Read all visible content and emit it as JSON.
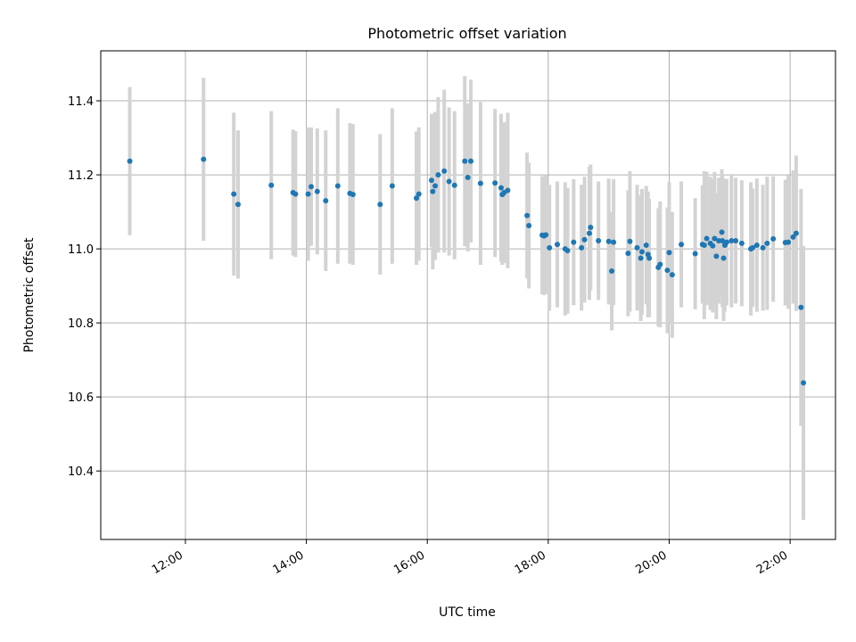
{
  "chart_data": {
    "type": "scatter",
    "title": "Photometric offset variation",
    "xlabel": "UTC time",
    "ylabel": "Photometric offset",
    "x_unit": "hours (UTC)",
    "xlim": [
      10.6,
      22.75
    ],
    "ylim": [
      10.215,
      11.535
    ],
    "x_ticks": [
      {
        "value": 12,
        "label": "12:00"
      },
      {
        "value": 14,
        "label": "14:00"
      },
      {
        "value": 16,
        "label": "16:00"
      },
      {
        "value": 18,
        "label": "18:00"
      },
      {
        "value": 20,
        "label": "20:00"
      },
      {
        "value": 22,
        "label": "22:00"
      }
    ],
    "y_ticks": [
      {
        "value": 10.4,
        "label": "10.4"
      },
      {
        "value": 10.6,
        "label": "10.6"
      },
      {
        "value": 10.8,
        "label": "10.8"
      },
      {
        "value": 11.0,
        "label": "11.0"
      },
      {
        "value": 11.2,
        "label": "11.2"
      },
      {
        "value": 11.4,
        "label": "11.4"
      }
    ],
    "grid": true,
    "marker_color": "#1f77b4",
    "errorbar_color": "#d3d3d3",
    "points": [
      [
        11.08,
        11.237,
        0.2
      ],
      [
        12.3,
        11.242,
        0.22
      ],
      [
        12.8,
        11.148,
        0.22
      ],
      [
        12.87,
        11.12,
        0.2
      ],
      [
        13.42,
        11.172,
        0.2
      ],
      [
        13.78,
        11.152,
        0.17
      ],
      [
        13.82,
        11.148,
        0.17
      ],
      [
        14.03,
        11.148,
        0.18
      ],
      [
        14.08,
        11.168,
        0.16
      ],
      [
        14.18,
        11.155,
        0.17
      ],
      [
        14.32,
        11.13,
        0.19
      ],
      [
        14.52,
        11.17,
        0.21
      ],
      [
        14.72,
        11.15,
        0.19
      ],
      [
        14.77,
        11.147,
        0.19
      ],
      [
        15.22,
        11.12,
        0.19
      ],
      [
        15.42,
        11.17,
        0.21
      ],
      [
        15.82,
        11.137,
        0.18
      ],
      [
        15.86,
        11.148,
        0.18
      ],
      [
        16.07,
        11.185,
        0.18
      ],
      [
        16.09,
        11.155,
        0.21
      ],
      [
        16.13,
        11.17,
        0.2
      ],
      [
        16.18,
        11.2,
        0.21
      ],
      [
        16.28,
        11.21,
        0.22
      ],
      [
        16.36,
        11.182,
        0.2
      ],
      [
        16.45,
        11.172,
        0.2
      ],
      [
        16.62,
        11.237,
        0.23
      ],
      [
        16.67,
        11.193,
        0.2
      ],
      [
        16.72,
        11.237,
        0.22
      ],
      [
        16.88,
        11.177,
        0.22
      ],
      [
        17.12,
        11.178,
        0.2
      ],
      [
        17.22,
        11.165,
        0.2
      ],
      [
        17.24,
        11.147,
        0.19
      ],
      [
        17.27,
        11.152,
        0.19
      ],
      [
        17.33,
        11.158,
        0.21
      ],
      [
        17.65,
        11.09,
        0.17
      ],
      [
        17.68,
        11.063,
        0.17
      ],
      [
        17.9,
        11.037,
        0.16
      ],
      [
        17.93,
        11.035,
        0.16
      ],
      [
        17.96,
        11.038,
        0.16
      ],
      [
        18.02,
        11.003,
        0.17
      ],
      [
        18.15,
        11.012,
        0.17
      ],
      [
        18.28,
        11.0,
        0.18
      ],
      [
        18.32,
        10.995,
        0.17
      ],
      [
        18.42,
        11.018,
        0.17
      ],
      [
        18.55,
        11.003,
        0.17
      ],
      [
        18.6,
        11.025,
        0.17
      ],
      [
        18.68,
        11.042,
        0.18
      ],
      [
        18.7,
        11.058,
        0.17
      ],
      [
        18.83,
        11.022,
        0.16
      ],
      [
        19.0,
        11.02,
        0.17
      ],
      [
        19.05,
        10.94,
        0.16
      ],
      [
        19.08,
        11.018,
        0.17
      ],
      [
        19.32,
        10.988,
        0.17
      ],
      [
        19.35,
        11.02,
        0.19
      ],
      [
        19.47,
        11.003,
        0.17
      ],
      [
        19.53,
        10.975,
        0.17
      ],
      [
        19.55,
        10.992,
        0.17
      ],
      [
        19.62,
        11.01,
        0.16
      ],
      [
        19.65,
        10.985,
        0.17
      ],
      [
        19.67,
        10.975,
        0.16
      ],
      [
        19.82,
        10.95,
        0.16
      ],
      [
        19.85,
        10.958,
        0.17
      ],
      [
        19.97,
        10.942,
        0.17
      ],
      [
        20.0,
        10.99,
        0.19
      ],
      [
        20.05,
        10.93,
        0.17
      ],
      [
        20.2,
        11.012,
        0.17
      ],
      [
        20.43,
        10.987,
        0.15
      ],
      [
        20.55,
        11.012,
        0.16
      ],
      [
        20.58,
        11.01,
        0.2
      ],
      [
        20.62,
        11.028,
        0.18
      ],
      [
        20.68,
        11.015,
        0.18
      ],
      [
        20.72,
        11.008,
        0.18
      ],
      [
        20.75,
        11.028,
        0.18
      ],
      [
        20.78,
        10.98,
        0.17
      ],
      [
        20.82,
        11.022,
        0.17
      ],
      [
        20.87,
        11.045,
        0.17
      ],
      [
        20.88,
        11.022,
        0.18
      ],
      [
        20.9,
        10.975,
        0.17
      ],
      [
        20.92,
        11.01,
        0.18
      ],
      [
        20.95,
        11.018,
        0.17
      ],
      [
        21.03,
        11.022,
        0.18
      ],
      [
        21.1,
        11.022,
        0.17
      ],
      [
        21.2,
        11.015,
        0.17
      ],
      [
        21.35,
        11.0,
        0.18
      ],
      [
        21.38,
        11.003,
        0.16
      ],
      [
        21.45,
        11.01,
        0.18
      ],
      [
        21.55,
        11.003,
        0.17
      ],
      [
        21.62,
        11.015,
        0.18
      ],
      [
        21.72,
        11.027,
        0.17
      ],
      [
        21.92,
        11.017,
        0.17
      ],
      [
        21.97,
        11.018,
        0.18
      ],
      [
        22.05,
        11.032,
        0.18
      ],
      [
        22.1,
        11.042,
        0.21
      ],
      [
        22.18,
        10.842,
        0.32
      ],
      [
        22.22,
        10.638,
        0.37
      ]
    ]
  }
}
